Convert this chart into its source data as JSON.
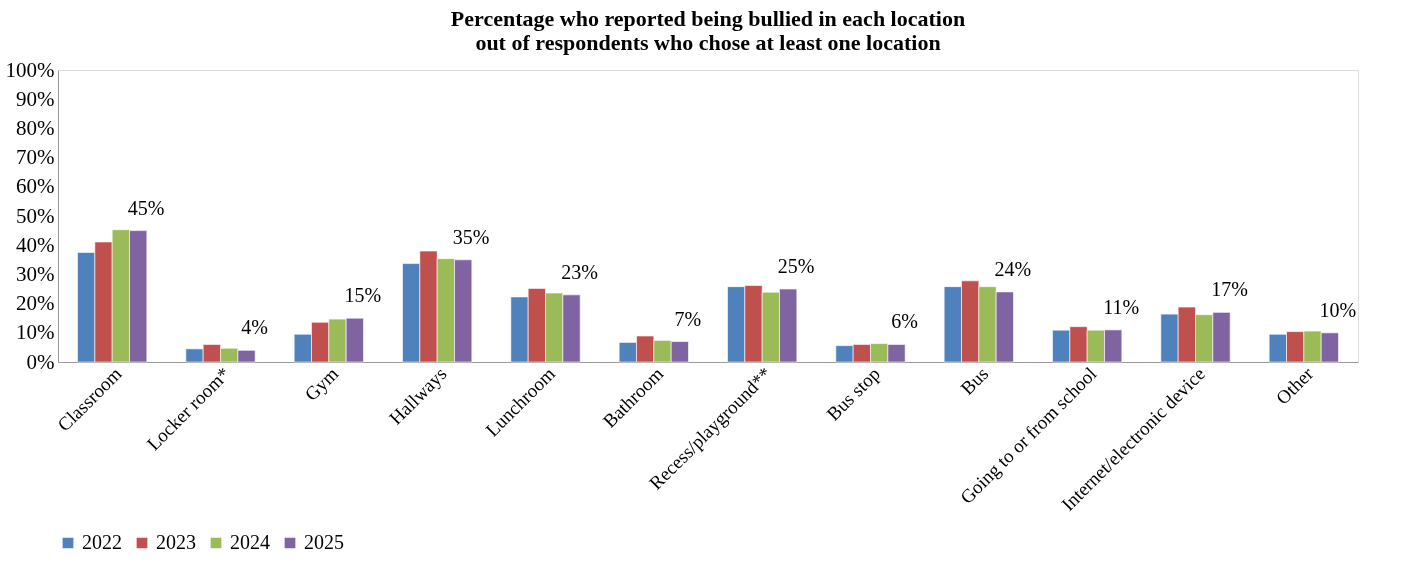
{
  "chart_data": {
    "type": "bar",
    "title": "Percentage who reported being bullied in each location\nout of respondents who chose at least one location",
    "categories": [
      "Classroom",
      "Locker room*",
      "Gym",
      "Hallways",
      "Lunchroom",
      "Bathroom",
      "Recess/playground**",
      "Bus stop",
      "Bus",
      "Going to or from school",
      "Internet/electronic device",
      "Other"
    ],
    "series": [
      {
        "name": "2022",
        "color": "#4f81bd",
        "values": [
          37.5,
          4.5,
          9.5,
          33.7,
          22.3,
          6.7,
          25.8,
          5.6,
          25.8,
          10.9,
          16.4,
          9.5
        ]
      },
      {
        "name": "2023",
        "color": "#c0504d",
        "values": [
          41.1,
          6.0,
          13.6,
          38.0,
          25.2,
          8.9,
          26.2,
          6.0,
          27.8,
          12.1,
          18.8,
          10.4
        ]
      },
      {
        "name": "2024",
        "color": "#9bbb59",
        "values": [
          45.3,
          4.7,
          14.7,
          35.4,
          23.6,
          7.4,
          23.9,
          6.3,
          25.8,
          10.9,
          16.2,
          10.6
        ]
      },
      {
        "name": "2025",
        "color": "#8064a2",
        "values": [
          45,
          4,
          15,
          35,
          23,
          7,
          25,
          6,
          24,
          11,
          17,
          10
        ],
        "value_labels": [
          "45%",
          "4%",
          "15%",
          "35%",
          "23%",
          "7%",
          "25%",
          "6%",
          "24%",
          "11%",
          "17%",
          "10%"
        ]
      }
    ],
    "ylim": [
      0,
      100
    ],
    "yticks": [
      {
        "value": 0,
        "label": "0%"
      },
      {
        "value": 10,
        "label": "10%"
      },
      {
        "value": 20,
        "label": "20%"
      },
      {
        "value": 30,
        "label": "30%"
      },
      {
        "value": 40,
        "label": "40%"
      },
      {
        "value": 50,
        "label": "50%"
      },
      {
        "value": 60,
        "label": "60%"
      },
      {
        "value": 70,
        "label": "70%"
      },
      {
        "value": 80,
        "label": "80%"
      },
      {
        "value": 90,
        "label": "90%"
      },
      {
        "value": 100,
        "label": "100%"
      }
    ],
    "grid": false,
    "legend": "bottom"
  }
}
